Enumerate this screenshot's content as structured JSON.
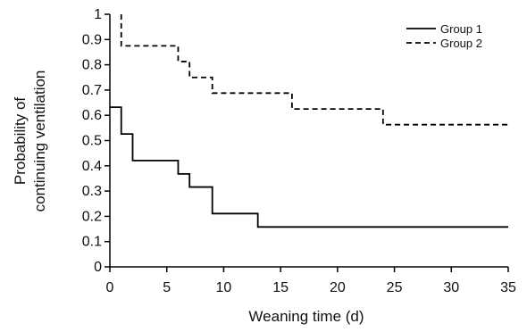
{
  "chart_data": {
    "type": "line",
    "step": true,
    "title": "",
    "xlabel": "Weaning time (d)",
    "ylabel_lines": [
      "Probability of",
      "continuing ventilation"
    ],
    "xlim": [
      0,
      35
    ],
    "ylim": [
      0,
      1
    ],
    "x_ticks": [
      0,
      5,
      10,
      15,
      20,
      25,
      30,
      35
    ],
    "y_ticks": [
      "0",
      "0.1",
      "0.2",
      "0.3",
      "0.4",
      "0.5",
      "0.6",
      "0.7",
      "0.8",
      "0.9",
      "1"
    ],
    "grid": false,
    "legend_position": "top-right",
    "series": [
      {
        "name": "Group 1",
        "dash": "solid",
        "color": "#000000",
        "points": [
          [
            0,
            0.632
          ],
          [
            1,
            0.632
          ],
          [
            1,
            0.526
          ],
          [
            2,
            0.526
          ],
          [
            2,
            0.421
          ],
          [
            6,
            0.421
          ],
          [
            6,
            0.368
          ],
          [
            7,
            0.368
          ],
          [
            7,
            0.316
          ],
          [
            9,
            0.316
          ],
          [
            9,
            0.211
          ],
          [
            13,
            0.211
          ],
          [
            13,
            0.158
          ],
          [
            35,
            0.158
          ]
        ]
      },
      {
        "name": "Group 2",
        "dash": "dashed",
        "color": "#000000",
        "points": [
          [
            1,
            1.0
          ],
          [
            1,
            0.875
          ],
          [
            6,
            0.875
          ],
          [
            6,
            0.813
          ],
          [
            7,
            0.813
          ],
          [
            7,
            0.75
          ],
          [
            9,
            0.75
          ],
          [
            9,
            0.688
          ],
          [
            16,
            0.688
          ],
          [
            16,
            0.625
          ],
          [
            24,
            0.625
          ],
          [
            24,
            0.563
          ],
          [
            35,
            0.563
          ]
        ]
      }
    ]
  }
}
